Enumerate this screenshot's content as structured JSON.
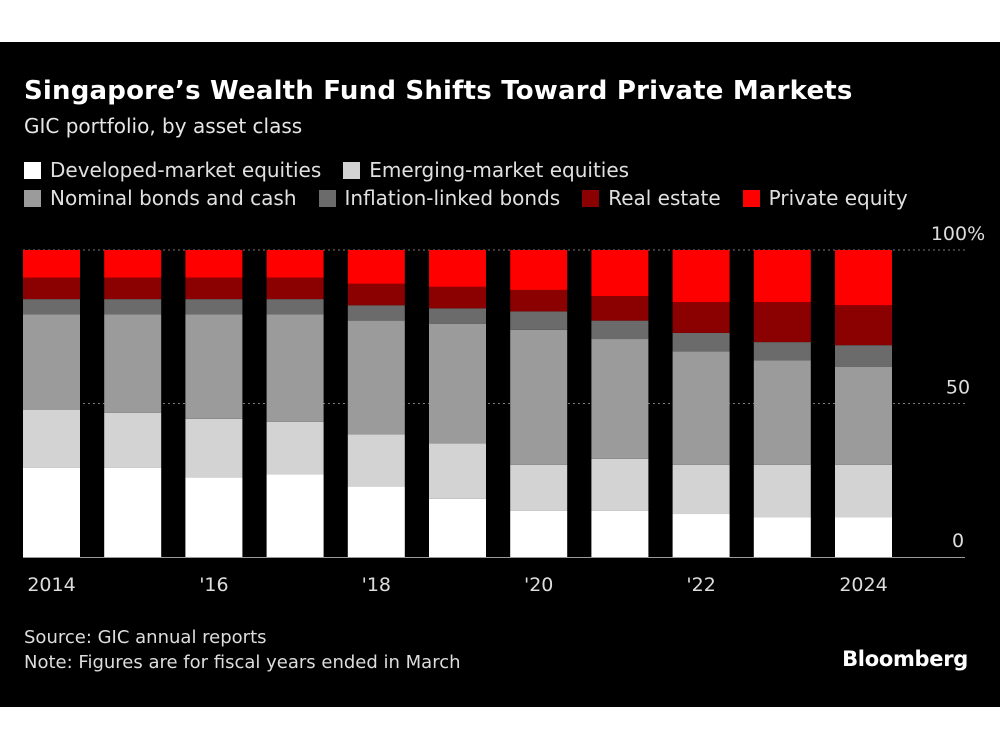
{
  "title": "Singapore’s Wealth Fund Shifts Toward Private Markets",
  "subtitle": "GIC portfolio, by asset class",
  "source": "Source: GIC annual reports",
  "note": "Note: Figures are for fiscal years ended in March",
  "brand": "Bloomberg",
  "colors": {
    "background": "#000000",
    "developed": "#ffffff",
    "emerging": "#d3d3d3",
    "nominal": "#9b9b9b",
    "inflation": "#6b6b6b",
    "real_estate": "#8b0000",
    "private_equity": "#ff0000"
  },
  "chart_data": {
    "type": "bar",
    "stacked": true,
    "title": "Singapore’s Wealth Fund Shifts Toward Private Markets",
    "subtitle": "GIC portfolio, by asset class",
    "categories": [
      "2014",
      "2015",
      "2016",
      "2017",
      "2018",
      "2019",
      "2020",
      "2021",
      "2022",
      "2023",
      "2024"
    ],
    "x_tick_labels": [
      {
        "category": "2014",
        "label": "2014"
      },
      {
        "category": "2016",
        "label": "'16"
      },
      {
        "category": "2018",
        "label": "'18"
      },
      {
        "category": "2020",
        "label": "'20"
      },
      {
        "category": "2022",
        "label": "'22"
      },
      {
        "category": "2024",
        "label": "2024"
      }
    ],
    "y_ticks": [
      {
        "value": 0,
        "label": "0"
      },
      {
        "value": 50,
        "label": "50"
      },
      {
        "value": 100,
        "label": "100%"
      }
    ],
    "ylim": [
      0,
      100
    ],
    "legend_position": "top",
    "series": [
      {
        "name": "Developed-market equities",
        "color": "#ffffff",
        "values": [
          29,
          29,
          26,
          27,
          23,
          19,
          15,
          15,
          14,
          13,
          13
        ]
      },
      {
        "name": "Emerging-market equities",
        "color": "#d3d3d3",
        "values": [
          19,
          18,
          19,
          17,
          17,
          18,
          15,
          17,
          16,
          17,
          17
        ]
      },
      {
        "name": "Nominal bonds and cash",
        "color": "#9b9b9b",
        "values": [
          31,
          32,
          34,
          35,
          37,
          39,
          44,
          39,
          37,
          34,
          32
        ]
      },
      {
        "name": "Inflation-linked bonds",
        "color": "#6b6b6b",
        "values": [
          5,
          5,
          5,
          5,
          5,
          5,
          6,
          6,
          6,
          6,
          7
        ]
      },
      {
        "name": "Real estate",
        "color": "#8b0000",
        "values": [
          7,
          7,
          7,
          7,
          7,
          7,
          7,
          8,
          10,
          13,
          13
        ]
      },
      {
        "name": "Private equity",
        "color": "#ff0000",
        "values": [
          9,
          9,
          9,
          9,
          11,
          12,
          13,
          15,
          17,
          17,
          18
        ]
      }
    ]
  }
}
